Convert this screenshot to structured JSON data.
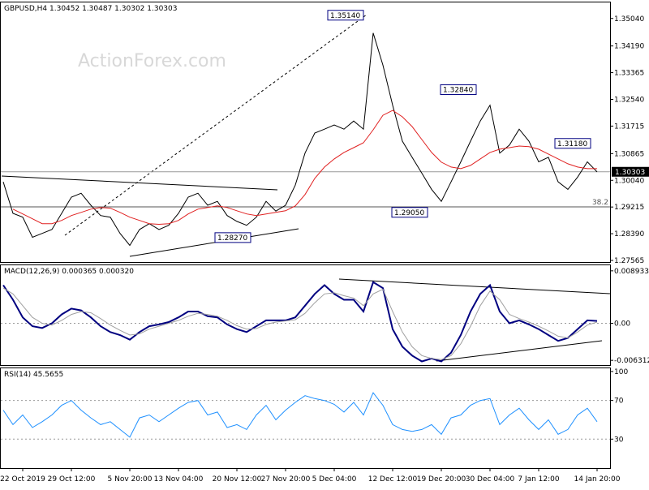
{
  "chart_data": [
    {
      "type": "line",
      "title": "GBPUSD,H4 1.30452 1.30487 1.30302 1.30303",
      "watermark": "ActionForex.com",
      "categories": [
        null,
        null,
        "22 Oct 2019",
        null,
        null,
        null,
        null,
        "29 Oct 12:00",
        null,
        null,
        null,
        null,
        null,
        "5 Nov 20:00",
        null,
        null,
        null,
        null,
        "13 Nov 04:00",
        null,
        null,
        null,
        null,
        null,
        "20 Nov 12:00",
        null,
        null,
        null,
        null,
        "27 Nov 20:00",
        null,
        null,
        null,
        null,
        "5 Dec 04:00",
        null,
        null,
        null,
        null,
        null,
        "12 Dec 12:00",
        null,
        null,
        null,
        null,
        "19 Dec 20:00",
        null,
        null,
        null,
        null,
        "30 Dec 04:00",
        null,
        null,
        null,
        null,
        "7 Jan 12:00",
        null,
        null,
        null,
        null,
        null,
        "14 Jan 20:00"
      ],
      "series": [
        {
          "color": "#000000",
          "values": [
            1.2999,
            1.2902,
            1.289,
            1.2828,
            1.284,
            1.2852,
            1.2902,
            1.2952,
            1.2964,
            1.2927,
            1.2895,
            1.289,
            1.284,
            1.2803,
            1.2852,
            1.287,
            1.2852,
            1.2865,
            1.2902,
            1.2952,
            1.2964,
            1.2927,
            1.2939,
            1.2895,
            1.2877,
            1.2865,
            1.289,
            1.2939,
            1.2909,
            1.2927,
            1.2989,
            1.3088,
            1.315,
            1.3162,
            1.3175,
            1.3162,
            1.3187,
            1.3162,
            1.3459,
            1.336,
            1.3236,
            1.3125,
            1.3075,
            1.3026,
            1.2976,
            1.2939,
            1.2999,
            1.3061,
            1.3125,
            1.3187,
            1.3236,
            1.3088,
            1.3113,
            1.3162,
            1.3125,
            1.3061,
            1.3075,
            1.2999,
            1.2976,
            1.3014,
            1.3061,
            1.303
          ]
        },
        {
          "color": "#e02020",
          "values": [
            null,
            1.2915,
            1.29,
            1.2885,
            1.287,
            1.287,
            1.288,
            1.2895,
            1.2905,
            1.2915,
            1.292,
            1.2918,
            1.2905,
            1.289,
            1.288,
            1.287,
            1.2868,
            1.287,
            1.288,
            1.29,
            1.2915,
            1.292,
            1.2925,
            1.292,
            1.291,
            1.29,
            1.2895,
            1.29,
            1.2905,
            1.291,
            1.2925,
            1.296,
            1.301,
            1.3045,
            1.307,
            1.309,
            1.3105,
            1.312,
            1.316,
            1.3205,
            1.322,
            1.32,
            1.317,
            1.313,
            1.309,
            1.306,
            1.3045,
            1.304,
            1.305,
            1.307,
            1.309,
            1.31,
            1.3105,
            1.311,
            1.3108,
            1.31,
            1.3085,
            1.307,
            1.3055,
            1.3045,
            1.304,
            1.304
          ]
        }
      ],
      "ylim": [
        1.27515,
        1.35535
      ],
      "yticks": [
        {
          "value": 1.3504,
          "label": "1.35040"
        },
        {
          "value": 1.3419,
          "label": "1.34190"
        },
        {
          "value": 1.33365,
          "label": "1.33365"
        },
        {
          "value": 1.3254,
          "label": "1.32540"
        },
        {
          "value": 1.31715,
          "label": "1.31715"
        },
        {
          "value": 1.30865,
          "label": "1.30865"
        },
        {
          "value": 1.3004,
          "label": "1.30040"
        },
        {
          "value": 1.29215,
          "label": "1.29215"
        },
        {
          "value": 1.2839,
          "label": "1.28390"
        },
        {
          "value": 1.27565,
          "label": "1.27565"
        }
      ],
      "annotations": [
        {
          "value": 1.3514,
          "label": "1.35140"
        },
        {
          "value": 1.3284,
          "label": "1.32840"
        },
        {
          "value": 1.3118,
          "label": "1.31180"
        },
        {
          "value": 1.2905,
          "label": "1.29050"
        },
        {
          "value": 1.2827,
          "label": "1.28270"
        }
      ],
      "current": {
        "value": 1.30303,
        "label": "1.30303"
      },
      "fib_level": {
        "label": "38.2",
        "price": 1.2922
      }
    },
    {
      "type": "line",
      "title": "MACD(12,26,9) 0.000365 0.000320",
      "series": [
        {
          "color": "#000080",
          "values": [
            0.0065,
            0.004,
            0.001,
            -0.0005,
            -0.0008,
            0,
            0.0015,
            0.0025,
            0.0022,
            0.001,
            -0.0005,
            -0.0015,
            -0.002,
            -0.0028,
            -0.0015,
            -0.0005,
            -0.0002,
            0.0002,
            0.001,
            0.002,
            0.002,
            0.0012,
            0.001,
            -0.0002,
            -0.001,
            -0.0015,
            -0.0005,
            0.0005,
            0.0005,
            0.0005,
            0.001,
            0.003,
            0.005,
            0.0065,
            0.005,
            0.004,
            0.004,
            0.002,
            0.007,
            0.006,
            -0.001,
            -0.004,
            -0.0055,
            -0.0065,
            -0.006,
            -0.0065,
            -0.005,
            -0.002,
            0.002,
            0.005,
            0.0065,
            0.002,
            0,
            0.0005,
            -0.0002,
            -0.001,
            -0.002,
            -0.003,
            -0.0025,
            -0.001,
            0.0005,
            0.0004
          ]
        },
        {
          "color": "#a0a0a0",
          "values": [
            0.006,
            0.005,
            0.003,
            0.001,
            0,
            -0.0003,
            0.0005,
            0.0015,
            0.002,
            0.0018,
            0.0008,
            -0.0003,
            -0.0012,
            -0.002,
            -0.0018,
            -0.001,
            -0.0005,
            0,
            0.0005,
            0.0012,
            0.0017,
            0.0015,
            0.0012,
            0.0005,
            -0.0004,
            -0.001,
            -0.0009,
            -0.0002,
            0.0002,
            0.0004,
            0.0006,
            0.0017,
            0.0035,
            0.005,
            0.0052,
            0.0047,
            0.0043,
            0.003,
            0.005,
            0.0058,
            0.002,
            -0.0015,
            -0.004,
            -0.0055,
            -0.006,
            -0.0062,
            -0.0055,
            -0.0035,
            -0.0005,
            0.003,
            0.0055,
            0.004,
            0.0015,
            0.0008,
            0.0002,
            -0.0005,
            -0.0013,
            -0.0022,
            -0.0025,
            -0.0015,
            -0.0003,
            0.0002
          ]
        }
      ],
      "ylim": [
        -0.00712,
        0.00988
      ],
      "yticks": [
        0.008933,
        {
          "value": 0,
          "label": "0.00"
        },
        -0.006312
      ]
    },
    {
      "type": "line",
      "title": "RSI(14) 45.5655",
      "series": [
        {
          "color": "#1e90ff",
          "values": [
            60,
            45,
            55,
            42,
            48,
            55,
            65,
            70,
            60,
            52,
            45,
            48,
            40,
            32,
            52,
            55,
            48,
            55,
            62,
            68,
            70,
            55,
            58,
            42,
            45,
            40,
            55,
            65,
            50,
            60,
            68,
            75,
            72,
            70,
            66,
            58,
            68,
            55,
            78,
            65,
            45,
            40,
            38,
            40,
            45,
            35,
            52,
            55,
            65,
            70,
            72,
            45,
            55,
            62,
            50,
            40,
            50,
            35,
            40,
            55,
            62,
            48
          ]
        }
      ],
      "ylim": [
        0,
        103.3
      ],
      "yticks": [
        100,
        70,
        30
      ]
    }
  ]
}
